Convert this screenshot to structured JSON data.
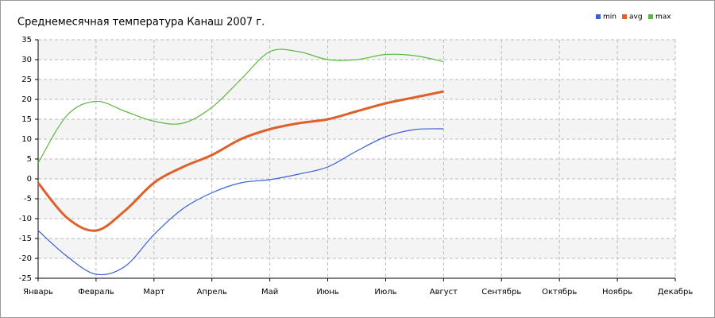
{
  "chart_data": {
    "type": "line",
    "title": "Среднемесячная температура Канаш  2007 г.",
    "categories": [
      "Январь",
      null,
      "Февраль",
      null,
      "Март",
      null,
      "Апрель",
      null,
      "Май",
      null,
      "Июнь",
      null,
      "Июль",
      null,
      "Август",
      null,
      "Сентябрь",
      null,
      "Октябрь",
      null,
      "Ноябрь",
      null,
      "Декабрь"
    ],
    "series": [
      {
        "name": "min",
        "color": "#3a5fd6",
        "values": [
          -13,
          -19.5,
          -24,
          -22,
          -14,
          -7.5,
          -3.5,
          -1,
          -0.2,
          1.2,
          3,
          7,
          10.6,
          12.4,
          12.6,
          null,
          null,
          null,
          null,
          null,
          null,
          null,
          null
        ]
      },
      {
        "name": "avg",
        "color": "#e0602a",
        "values": [
          -1,
          -9.8,
          -13,
          -8,
          -1,
          3,
          6,
          10,
          12.5,
          14,
          15,
          17,
          19,
          20.5,
          22,
          null,
          null,
          null,
          null,
          null,
          null,
          null,
          null
        ]
      },
      {
        "name": "max",
        "color": "#5bb840",
        "values": [
          4,
          16,
          19.5,
          17,
          14.5,
          14,
          18,
          25,
          32,
          32,
          30,
          30,
          31.3,
          31,
          29.5,
          null,
          null,
          null,
          null,
          null,
          null,
          null,
          null
        ]
      }
    ],
    "ylim": [
      -25,
      35
    ],
    "yticks": [
      -25,
      -20,
      -15,
      -10,
      -5,
      0,
      5,
      10,
      15,
      20,
      25,
      30,
      35
    ],
    "grid": true,
    "legend": "top-right"
  }
}
